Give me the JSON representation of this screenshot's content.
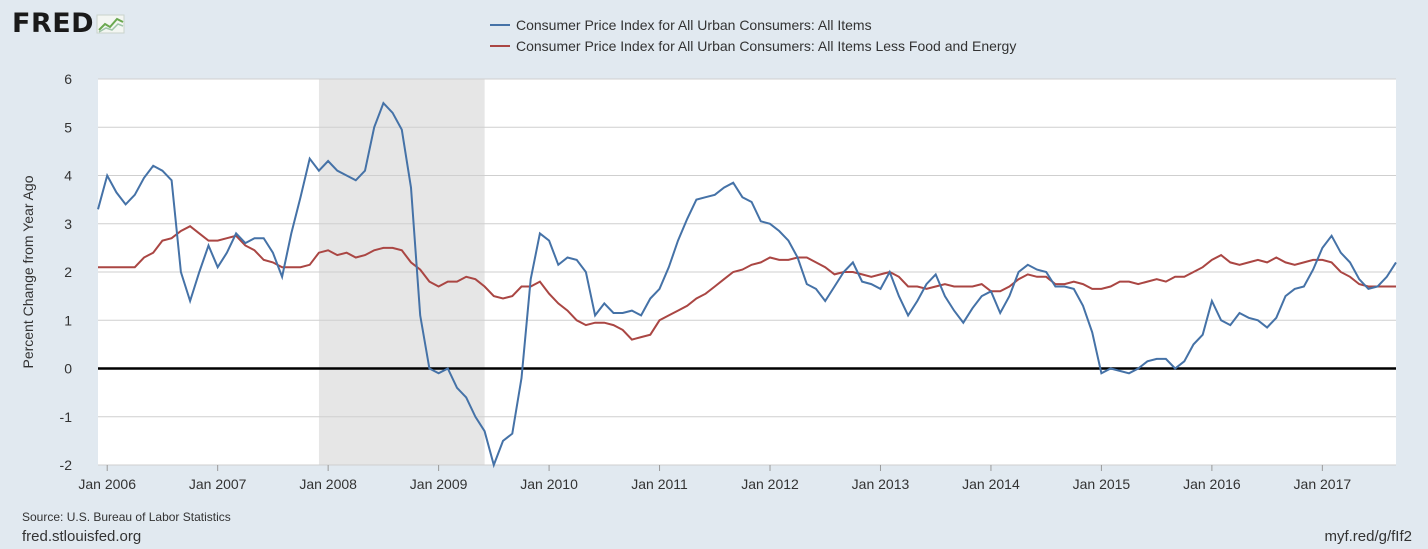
{
  "logo": {
    "text": "FRED",
    "icon": "line-graph-icon"
  },
  "footer": {
    "source": "Source: U.S. Bureau of Labor Statistics",
    "site": "fred.stlouisfed.org",
    "link": "myf.red/g/fIf2"
  },
  "colors": {
    "background": "#e1e9f0",
    "plot": "#ffffff",
    "recession": "#e6e6e6",
    "zero_line": "#000000"
  },
  "chart_data": {
    "type": "line",
    "title": "",
    "xlabel": "",
    "ylabel": "Percent Change from Year Ago",
    "ylim": [
      -2,
      6
    ],
    "yticks": [
      -2,
      -1,
      0,
      1,
      2,
      3,
      4,
      5,
      6
    ],
    "xlim": [
      "2005-12",
      "2017-09"
    ],
    "xticks": [
      "Jan 2006",
      "Jan 2007",
      "Jan 2008",
      "Jan 2009",
      "Jan 2010",
      "Jan 2011",
      "Jan 2012",
      "Jan 2013",
      "Jan 2014",
      "Jan 2015",
      "Jan 2016",
      "Jan 2017"
    ],
    "grid": true,
    "legend_position": "top",
    "shaded_ranges": [
      {
        "start": "2007-12",
        "end": "2009-06",
        "label": ""
      }
    ],
    "reference_lines": [
      {
        "y": 0
      }
    ],
    "x": [
      "2005-12",
      "2006-01",
      "2006-02",
      "2006-03",
      "2006-04",
      "2006-05",
      "2006-06",
      "2006-07",
      "2006-08",
      "2006-09",
      "2006-10",
      "2006-11",
      "2006-12",
      "2007-01",
      "2007-02",
      "2007-03",
      "2007-04",
      "2007-05",
      "2007-06",
      "2007-07",
      "2007-08",
      "2007-09",
      "2007-10",
      "2007-11",
      "2007-12",
      "2008-01",
      "2008-02",
      "2008-03",
      "2008-04",
      "2008-05",
      "2008-06",
      "2008-07",
      "2008-08",
      "2008-09",
      "2008-10",
      "2008-11",
      "2008-12",
      "2009-01",
      "2009-02",
      "2009-03",
      "2009-04",
      "2009-05",
      "2009-06",
      "2009-07",
      "2009-08",
      "2009-09",
      "2009-10",
      "2009-11",
      "2009-12",
      "2010-01",
      "2010-02",
      "2010-03",
      "2010-04",
      "2010-05",
      "2010-06",
      "2010-07",
      "2010-08",
      "2010-09",
      "2010-10",
      "2010-11",
      "2010-12",
      "2011-01",
      "2011-02",
      "2011-03",
      "2011-04",
      "2011-05",
      "2011-06",
      "2011-07",
      "2011-08",
      "2011-09",
      "2011-10",
      "2011-11",
      "2011-12",
      "2012-01",
      "2012-02",
      "2012-03",
      "2012-04",
      "2012-05",
      "2012-06",
      "2012-07",
      "2012-08",
      "2012-09",
      "2012-10",
      "2012-11",
      "2012-12",
      "2013-01",
      "2013-02",
      "2013-03",
      "2013-04",
      "2013-05",
      "2013-06",
      "2013-07",
      "2013-08",
      "2013-09",
      "2013-10",
      "2013-11",
      "2013-12",
      "2014-01",
      "2014-02",
      "2014-03",
      "2014-04",
      "2014-05",
      "2014-06",
      "2014-07",
      "2014-08",
      "2014-09",
      "2014-10",
      "2014-11",
      "2014-12",
      "2015-01",
      "2015-02",
      "2015-03",
      "2015-04",
      "2015-05",
      "2015-06",
      "2015-07",
      "2015-08",
      "2015-09",
      "2015-10",
      "2015-11",
      "2015-12",
      "2016-01",
      "2016-02",
      "2016-03",
      "2016-04",
      "2016-05",
      "2016-06",
      "2016-07",
      "2016-08",
      "2016-09",
      "2016-10",
      "2016-11",
      "2016-12",
      "2017-01",
      "2017-02",
      "2017-03",
      "2017-04",
      "2017-05",
      "2017-06",
      "2017-07",
      "2017-08",
      "2017-09"
    ],
    "series": [
      {
        "name": "Consumer Price Index for All Urban Consumers: All Items",
        "color": "#4572a7",
        "values": [
          3.3,
          4.0,
          3.65,
          3.4,
          3.6,
          3.95,
          4.2,
          4.1,
          3.9,
          2.0,
          1.4,
          2.0,
          2.55,
          2.1,
          2.4,
          2.8,
          2.6,
          2.7,
          2.7,
          2.4,
          1.9,
          2.8,
          3.55,
          4.35,
          4.1,
          4.3,
          4.1,
          4.0,
          3.9,
          4.1,
          5.0,
          5.5,
          5.3,
          4.95,
          3.75,
          1.1,
          0.0,
          -0.1,
          0.0,
          -0.4,
          -0.6,
          -1.0,
          -1.3,
          -2.0,
          -1.5,
          -1.35,
          -0.2,
          1.85,
          2.8,
          2.65,
          2.15,
          2.3,
          2.25,
          2.0,
          1.1,
          1.35,
          1.15,
          1.15,
          1.2,
          1.1,
          1.45,
          1.65,
          2.1,
          2.65,
          3.1,
          3.5,
          3.55,
          3.6,
          3.75,
          3.85,
          3.55,
          3.45,
          3.05,
          3.0,
          2.85,
          2.65,
          2.3,
          1.75,
          1.65,
          1.4,
          1.7,
          2.0,
          2.2,
          1.8,
          1.75,
          1.65,
          2.0,
          1.5,
          1.1,
          1.4,
          1.75,
          1.95,
          1.5,
          1.2,
          0.95,
          1.25,
          1.5,
          1.6,
          1.15,
          1.5,
          2.0,
          2.15,
          2.05,
          2.0,
          1.7,
          1.7,
          1.65,
          1.3,
          0.75,
          -0.1,
          0.0,
          -0.05,
          -0.1,
          0.0,
          0.15,
          0.2,
          0.2,
          0.0,
          0.15,
          0.5,
          0.7,
          1.4,
          1.0,
          0.9,
          1.15,
          1.05,
          1.0,
          0.85,
          1.05,
          1.5,
          1.65,
          1.7,
          2.05,
          2.5,
          2.75,
          2.4,
          2.2,
          1.85,
          1.65,
          1.7,
          1.9,
          2.2
        ]
      },
      {
        "name": "Consumer Price Index for All Urban Consumers: All Items Less Food and Energy",
        "color": "#aa4643",
        "values": [
          2.1,
          2.1,
          2.1,
          2.1,
          2.1,
          2.3,
          2.4,
          2.65,
          2.7,
          2.85,
          2.95,
          2.8,
          2.65,
          2.65,
          2.7,
          2.75,
          2.55,
          2.45,
          2.25,
          2.2,
          2.1,
          2.1,
          2.1,
          2.15,
          2.4,
          2.45,
          2.35,
          2.4,
          2.3,
          2.35,
          2.45,
          2.5,
          2.5,
          2.45,
          2.2,
          2.05,
          1.8,
          1.7,
          1.8,
          1.8,
          1.9,
          1.85,
          1.7,
          1.5,
          1.45,
          1.5,
          1.7,
          1.7,
          1.8,
          1.55,
          1.35,
          1.2,
          1.0,
          0.9,
          0.95,
          0.95,
          0.9,
          0.8,
          0.6,
          0.65,
          0.7,
          1.0,
          1.1,
          1.2,
          1.3,
          1.45,
          1.55,
          1.7,
          1.85,
          2.0,
          2.05,
          2.15,
          2.2,
          2.3,
          2.25,
          2.25,
          2.3,
          2.3,
          2.2,
          2.1,
          1.95,
          2.0,
          2.0,
          1.95,
          1.9,
          1.95,
          2.0,
          1.9,
          1.7,
          1.7,
          1.65,
          1.7,
          1.75,
          1.7,
          1.7,
          1.7,
          1.75,
          1.6,
          1.6,
          1.7,
          1.85,
          1.95,
          1.9,
          1.9,
          1.75,
          1.75,
          1.8,
          1.75,
          1.65,
          1.65,
          1.7,
          1.8,
          1.8,
          1.75,
          1.8,
          1.85,
          1.8,
          1.9,
          1.9,
          2.0,
          2.1,
          2.25,
          2.35,
          2.2,
          2.15,
          2.2,
          2.25,
          2.2,
          2.3,
          2.2,
          2.15,
          2.2,
          2.25,
          2.25,
          2.2,
          2.0,
          1.9,
          1.75,
          1.7,
          1.7,
          1.7,
          1.7
        ]
      }
    ]
  }
}
